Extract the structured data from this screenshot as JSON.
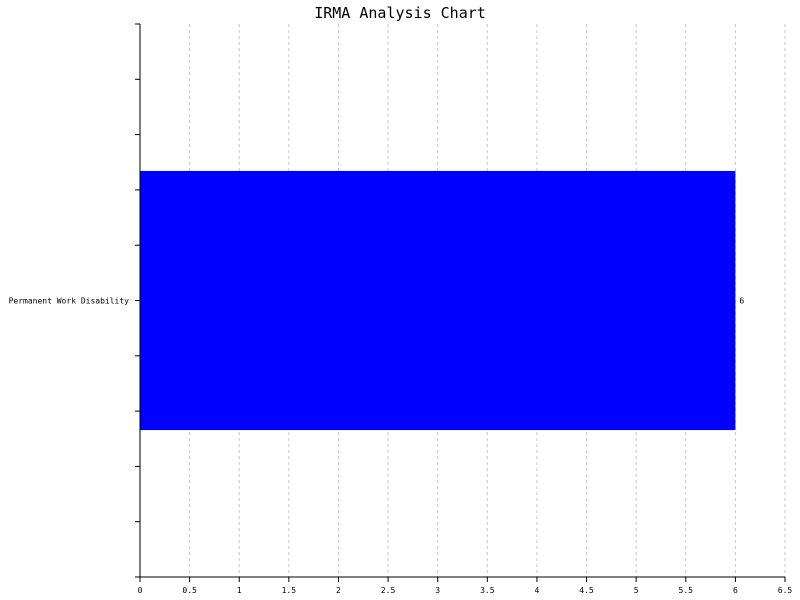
{
  "chart_data": {
    "type": "bar",
    "orientation": "horizontal",
    "title": "IRMA Analysis Chart",
    "categories": [
      "Permanent Work Disability"
    ],
    "values": [
      6
    ],
    "data_labels": [
      "6"
    ],
    "x_ticks": [
      "0",
      "0.5",
      "1",
      "1.5",
      "2",
      "2.5",
      "3",
      "3.5",
      "4",
      "4.5",
      "5",
      "5.5",
      "6",
      "6.5"
    ],
    "xlim": [
      0,
      6.5
    ],
    "grid": "vertical dashed",
    "bar_color": "#0000ff"
  }
}
